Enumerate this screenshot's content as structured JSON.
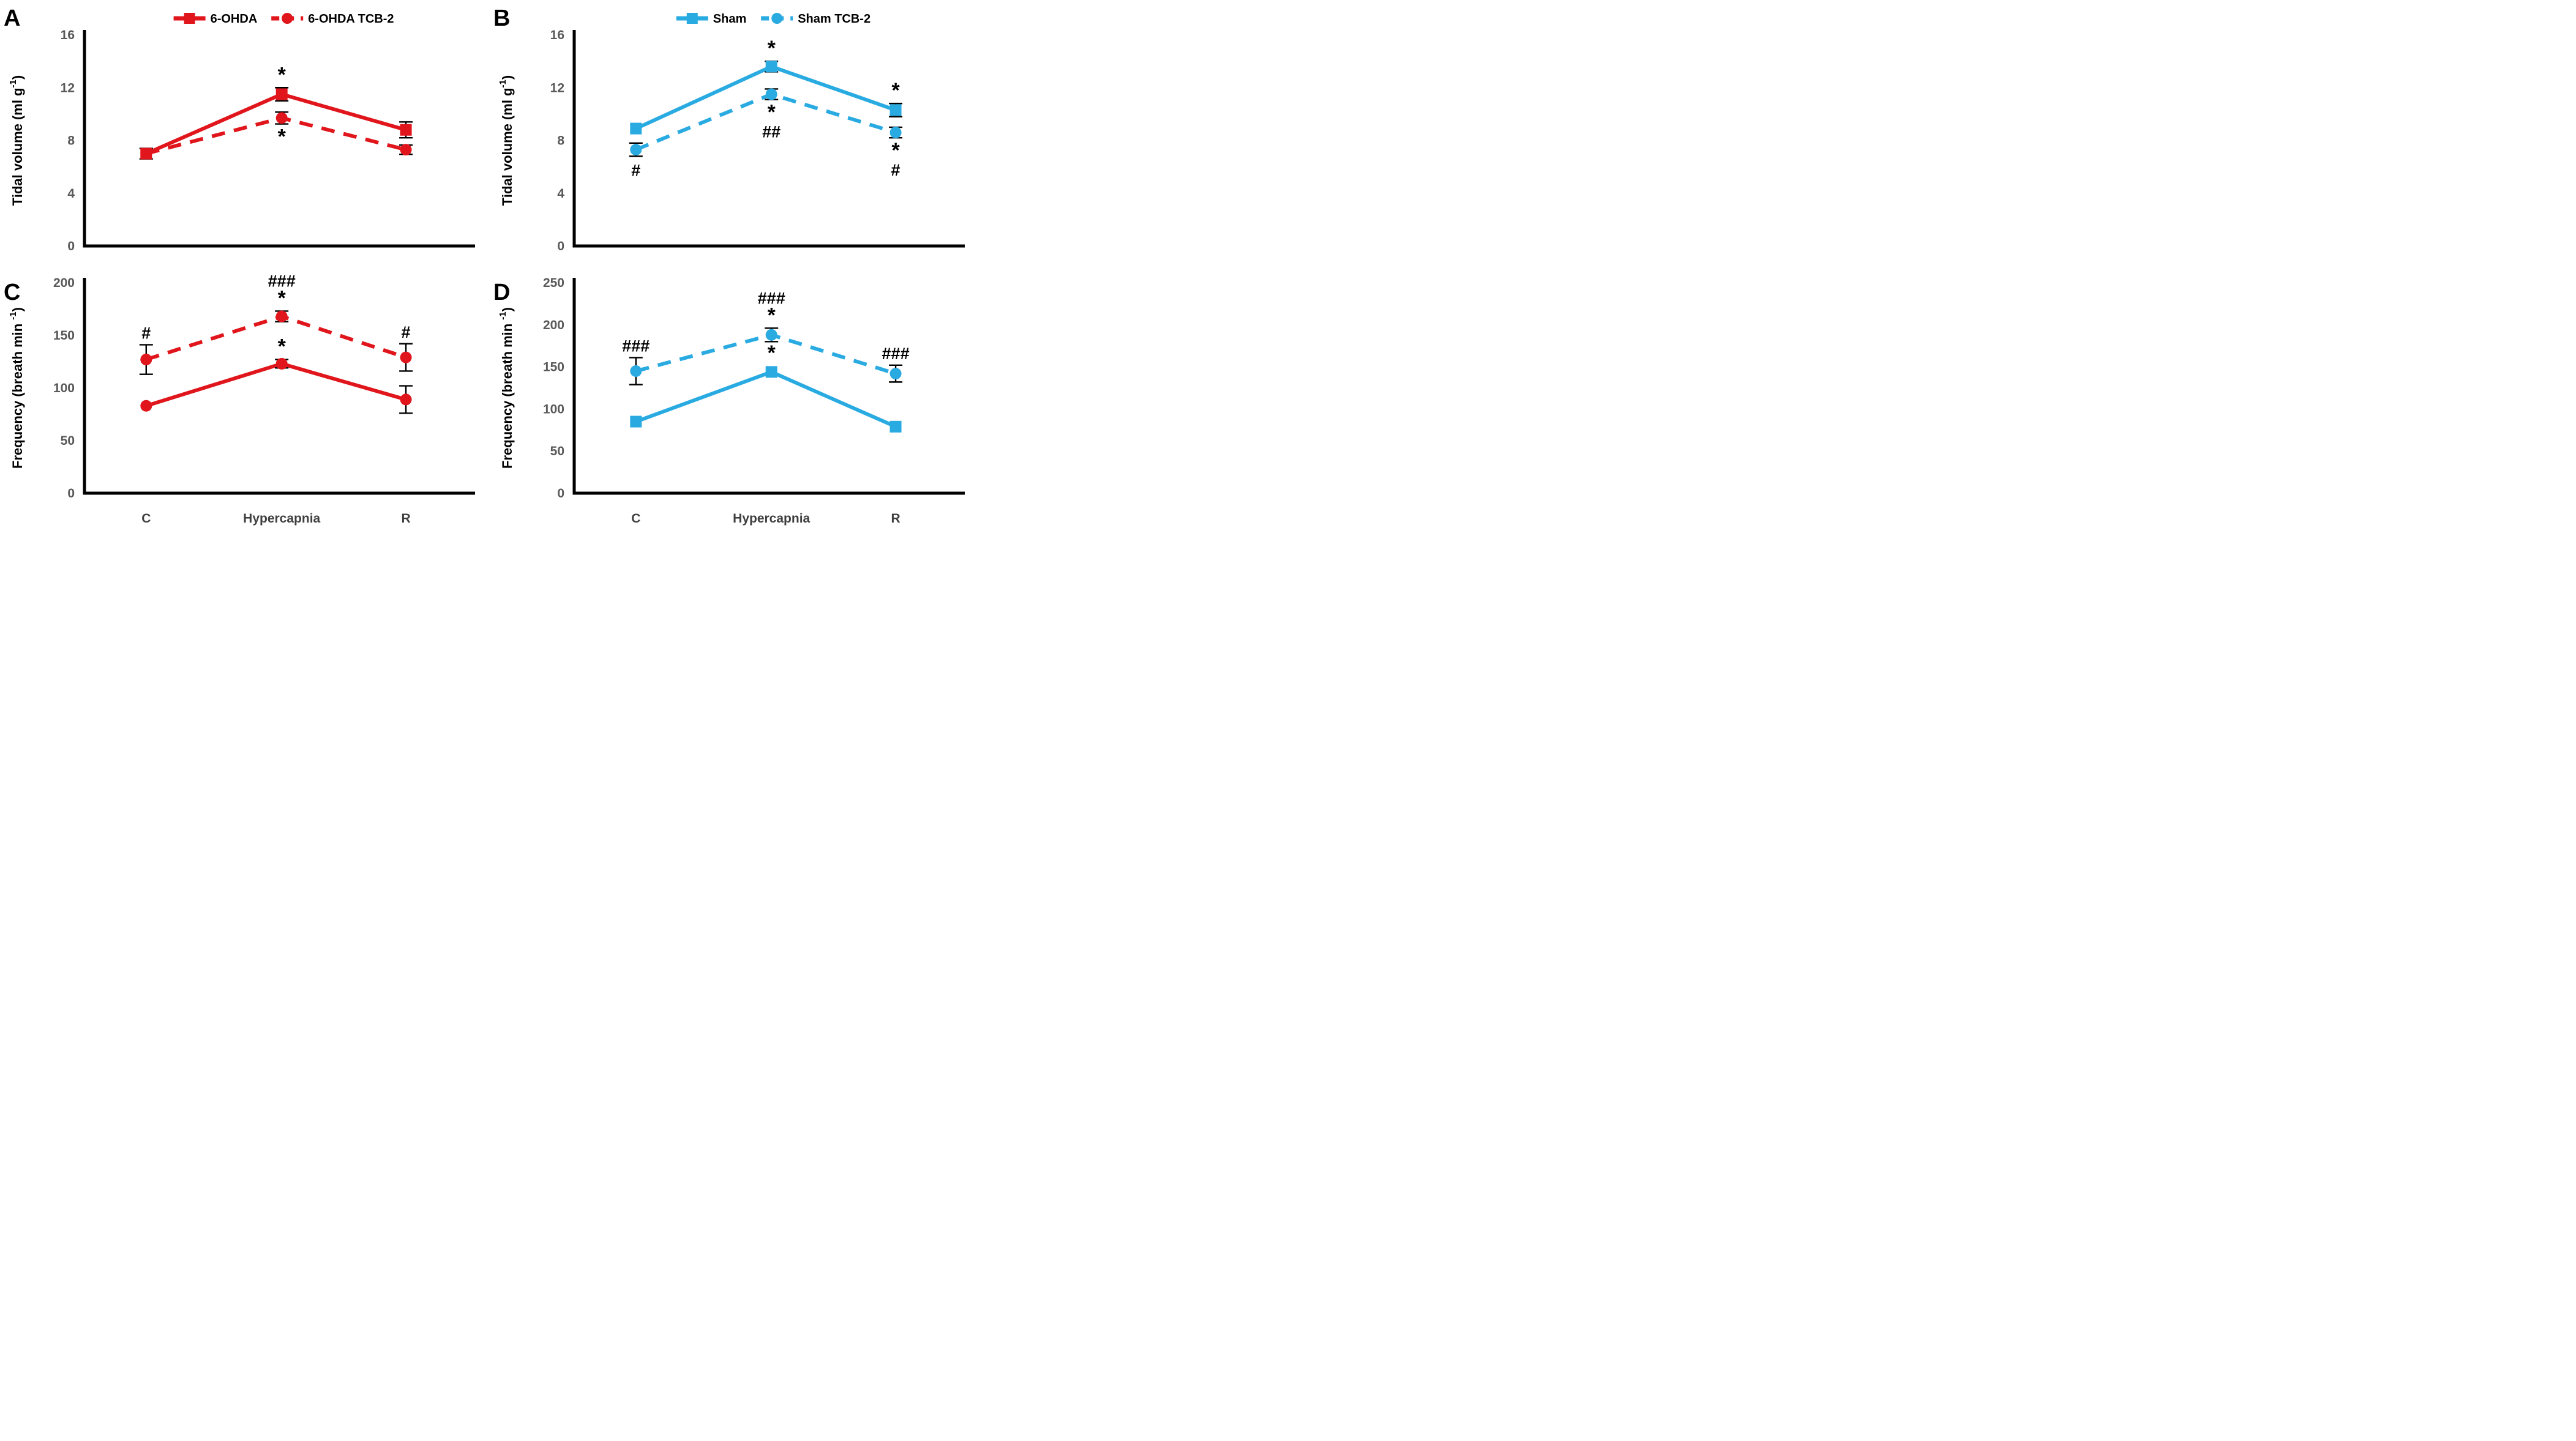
{
  "figure": {
    "background": "#FFFFFF",
    "axis_color": "#000000",
    "tick_label_color": "#595959",
    "category_label_color": "#3F3F3F",
    "annotation_color": "#000000",
    "red_accent": "#E0161C",
    "cyan_accent": "#29ABE2"
  },
  "chart_data": [
    {
      "type": "line",
      "panel_label": "A",
      "color": "#E0161C",
      "y_label": {
        "prefix": "Tidal volume (ml g",
        "sup": "-1",
        "suffix": ")"
      },
      "y_axis": {
        "min": 0,
        "max": 16,
        "ticks": [
          16,
          12,
          8,
          4,
          0
        ]
      },
      "categories": [
        "C",
        "Hypercapnia",
        "R"
      ],
      "show_x_labels": false,
      "legend": [
        {
          "label": "6-OHDA",
          "style": "solid",
          "marker": "square"
        },
        {
          "label": "6-OHDA TCB-2",
          "style": "dashed",
          "marker": "circle"
        }
      ],
      "series": [
        {
          "name": "6-OHDA",
          "style": "solid",
          "marker": "square",
          "values": [
            7.0,
            11.5,
            8.8
          ],
          "errors": [
            0.4,
            0.5,
            0.6
          ]
        },
        {
          "name": "6-OHDA TCB-2",
          "style": "dashed",
          "marker": "circle",
          "values": [
            7.0,
            9.7,
            7.3
          ],
          "errors": [
            null,
            0.45,
            0.35
          ]
        }
      ],
      "annotations": [
        {
          "cat": 1,
          "series": 0,
          "pos": "above",
          "lines": [
            "*"
          ]
        },
        {
          "cat": 1,
          "series": 1,
          "pos": "below",
          "lines": [
            "*"
          ]
        }
      ]
    },
    {
      "type": "line",
      "panel_label": "B",
      "color": "#29ABE2",
      "y_label": {
        "prefix": "Tidal volume (ml g",
        "sup": "-1",
        "suffix": ")"
      },
      "y_axis": {
        "min": 0,
        "max": 16,
        "ticks": [
          16,
          12,
          8,
          4,
          0
        ]
      },
      "categories": [
        "C",
        "Hypercapnia",
        "R"
      ],
      "show_x_labels": false,
      "legend": [
        {
          "label": "Sham",
          "style": "solid",
          "marker": "square"
        },
        {
          "label": "Sham TCB-2",
          "style": "dashed",
          "marker": "circle"
        }
      ],
      "series": [
        {
          "name": "Sham",
          "style": "solid",
          "marker": "square",
          "values": [
            8.9,
            13.6,
            10.3
          ],
          "errors": [
            null,
            0.4,
            0.5
          ]
        },
        {
          "name": "Sham TCB-2",
          "style": "dashed",
          "marker": "circle",
          "values": [
            7.3,
            11.5,
            8.6
          ],
          "errors": [
            0.5,
            0.4,
            0.4
          ]
        }
      ],
      "annotations": [
        {
          "cat": 0,
          "series": 1,
          "pos": "below",
          "lines": [
            "#"
          ]
        },
        {
          "cat": 1,
          "series": 0,
          "pos": "above",
          "lines": [
            "*"
          ]
        },
        {
          "cat": 1,
          "series": 1,
          "pos": "below",
          "lines": [
            "*",
            "##"
          ]
        },
        {
          "cat": 2,
          "series": 0,
          "pos": "above",
          "lines": [
            "*"
          ]
        },
        {
          "cat": 2,
          "series": 1,
          "pos": "below",
          "lines": [
            "*",
            "#"
          ]
        }
      ]
    },
    {
      "type": "line",
      "panel_label": "C",
      "color": "#E0161C",
      "y_label": {
        "prefix": "Frequency (breath min ",
        "sup": "-1",
        "suffix": ")"
      },
      "y_axis": {
        "min": 0,
        "max": 200,
        "ticks": [
          200,
          150,
          100,
          50,
          0
        ]
      },
      "categories": [
        "C",
        "Hypercapnia",
        "R"
      ],
      "show_x_labels": true,
      "series": [
        {
          "name": "6-OHDA",
          "style": "solid",
          "marker": "circle",
          "values": [
            83,
            123,
            89
          ],
          "errors": [
            null,
            4,
            13
          ]
        },
        {
          "name": "6-OHDA TCB-2",
          "style": "dashed",
          "marker": "circle",
          "values": [
            127,
            168,
            129
          ],
          "errors": [
            14,
            5,
            13
          ]
        }
      ],
      "annotations": [
        {
          "cat": 0,
          "series": 1,
          "pos": "above",
          "lines": [
            "#"
          ]
        },
        {
          "cat": 1,
          "series": 1,
          "pos": "above",
          "lines": [
            "###",
            "*"
          ]
        },
        {
          "cat": 1,
          "series": 0,
          "pos": "above",
          "lines": [
            "*"
          ]
        },
        {
          "cat": 2,
          "series": 1,
          "pos": "above",
          "lines": [
            "#"
          ]
        }
      ]
    },
    {
      "type": "line",
      "panel_label": "D",
      "color": "#29ABE2",
      "y_label": {
        "prefix": "Frequency (breath min ",
        "sup": "-1",
        "suffix": ")"
      },
      "y_axis": {
        "min": 0,
        "max": 250,
        "ticks": [
          250,
          200,
          150,
          100,
          50,
          0
        ]
      },
      "categories": [
        "C",
        "Hypercapnia",
        "R"
      ],
      "show_x_labels": true,
      "series": [
        {
          "name": "Sham",
          "style": "solid",
          "marker": "square",
          "values": [
            85,
            144,
            79
          ],
          "errors": [
            null,
            null,
            null
          ]
        },
        {
          "name": "Sham TCB-2",
          "style": "dashed",
          "marker": "circle",
          "values": [
            145,
            188,
            142
          ],
          "errors": [
            16,
            8,
            10
          ]
        }
      ],
      "annotations": [
        {
          "cat": 0,
          "series": 1,
          "pos": "above",
          "lines": [
            "###"
          ]
        },
        {
          "cat": 1,
          "series": 1,
          "pos": "above",
          "lines": [
            "###",
            "*"
          ]
        },
        {
          "cat": 1,
          "series": 0,
          "pos": "above",
          "lines": [
            "*"
          ]
        },
        {
          "cat": 2,
          "series": 1,
          "pos": "above",
          "lines": [
            "###"
          ]
        }
      ]
    }
  ]
}
